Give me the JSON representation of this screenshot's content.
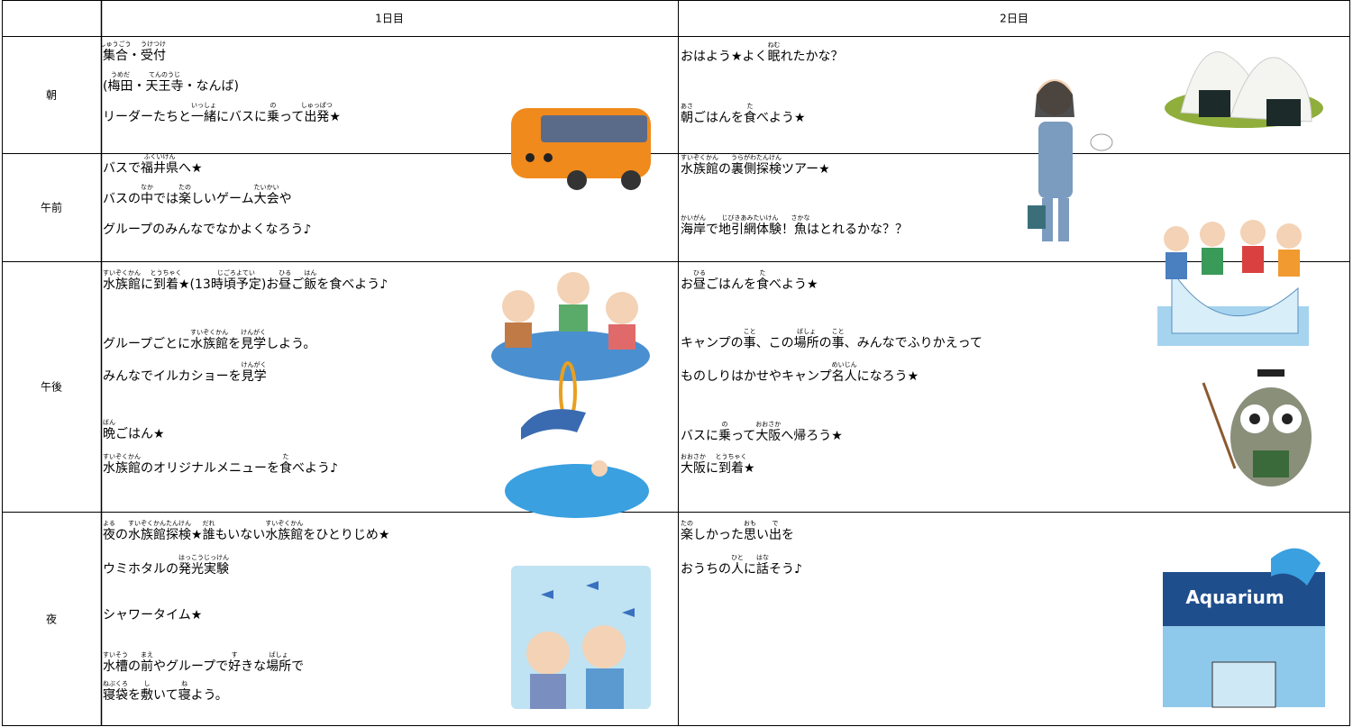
{
  "header": {
    "day1": "1日目",
    "day2": "2日目"
  },
  "rows": [
    {
      "label": "朝",
      "day1": [
        [
          [
            "集合",
            "しゅうごう"
          ],
          "・",
          [
            "受付",
            "うけつけ"
          ]
        ],
        [
          "(",
          [
            "梅田",
            "うめだ"
          ],
          "・",
          [
            "天王寺",
            "てんのうじ"
          ],
          "・なんば)"
        ],
        [
          "リーダーたちと",
          [
            "一緒",
            "いっしょ"
          ],
          "にバスに",
          [
            "乗",
            "の"
          ],
          "って",
          [
            "出発",
            "しゅっぱつ"
          ],
          "★"
        ]
      ],
      "day2": [
        [
          "おはよう★よく",
          [
            "眠",
            "ねむ"
          ],
          "れたかな？"
        ],
        [
          [
            "朝",
            "あさ"
          ],
          "ごはんを",
          [
            "食",
            "た"
          ],
          "べよう★"
        ]
      ]
    },
    {
      "label": "午前",
      "day1": [
        [
          "バスで",
          [
            "福井県",
            "ふくいけん"
          ],
          "へ★"
        ],
        [
          "バスの",
          [
            "中",
            "なか"
          ],
          "では",
          [
            "楽",
            "たの"
          ],
          "しいゲーム",
          [
            "大会",
            "たいかい"
          ],
          "や"
        ],
        [
          "グループのみんなでなかよくなろう♪"
        ]
      ],
      "day2": [
        [
          [
            "水族館",
            "すいぞくかん"
          ],
          "の",
          [
            "裏側探検",
            "うらがわたんけん"
          ],
          "ツアー★"
        ],
        [
          [
            "海岸",
            "かいがん"
          ],
          "で",
          [
            "地引網体験",
            "じびきあみたいけん"
          ],
          "！",
          [
            "魚",
            "さかな"
          ],
          "はとれるかな？？"
        ]
      ]
    },
    {
      "label": "午後",
      "day1": [
        [
          [
            "水族館",
            "すいぞくかん"
          ],
          "に",
          [
            "到着",
            "とうちゃく"
          ],
          "★(13",
          [
            "時頃予定",
            "じごろよてい"
          ],
          ")お",
          [
            "昼",
            "ひる"
          ],
          "ご",
          [
            "飯",
            "はん"
          ],
          "を食べよう♪"
        ],
        [
          "グループごとに",
          [
            "水族館",
            "すいぞくかん"
          ],
          "を",
          [
            "見学",
            "けんがく"
          ],
          "しよう。"
        ],
        [
          "みんなでイルカショーを",
          [
            "見学",
            "けんがく"
          ]
        ],
        [
          [
            "晩",
            "ばん"
          ],
          "ごはん★"
        ],
        [
          [
            "水族館",
            "すいぞくかん"
          ],
          "のオリジナルメニューを",
          [
            "食",
            "た"
          ],
          "べよう♪"
        ]
      ],
      "day2": [
        [
          "お",
          [
            "昼",
            "ひる"
          ],
          "ごはんを",
          [
            "食",
            "た"
          ],
          "べよう★"
        ],
        [
          "キャンプの",
          [
            "事",
            "こと"
          ],
          "、この",
          [
            "場所",
            "ばしょ"
          ],
          "の",
          [
            "事",
            "こと"
          ],
          "、みんなでふりかえって"
        ],
        [
          "ものしりはかせやキャンプ",
          [
            "名人",
            "めいじん"
          ],
          "になろう★"
        ],
        [
          "バスに",
          [
            "乗",
            "の"
          ],
          "って",
          [
            "大阪",
            "おおさか"
          ],
          "へ帰ろう★"
        ],
        [
          [
            "大阪",
            "おおさか"
          ],
          "に",
          [
            "到着",
            "とうちゃく"
          ],
          "★"
        ]
      ]
    },
    {
      "label": "夜",
      "day1": [
        [
          [
            "夜",
            "よる"
          ],
          "の",
          [
            "水族館探検",
            "すいぞくかんたんけん"
          ],
          "★",
          [
            "誰",
            "だれ"
          ],
          "もいない",
          [
            "水族館",
            "すいぞくかん"
          ],
          "をひとりじめ★"
        ],
        [
          "ウミホタルの",
          [
            "発光実験",
            "はっこうじっけん"
          ]
        ],
        [
          "シャワータイム★"
        ],
        [
          [
            "水槽",
            "すいそう"
          ],
          "の",
          [
            "前",
            "まえ"
          ],
          "やグループで",
          [
            "好",
            "す"
          ],
          "きな",
          [
            "場所",
            "ばしょ"
          ],
          "で"
        ],
        [
          [
            "寝袋",
            "ねぶくろ"
          ],
          "を",
          [
            "敷",
            "し"
          ],
          "いて",
          [
            "寝",
            "ね"
          ],
          "よう。"
        ]
      ],
      "day2": [
        [
          [
            "楽",
            "たの"
          ],
          "しかった",
          [
            "思",
            "おも"
          ],
          "い",
          [
            "出",
            "で"
          ],
          "を"
        ],
        [
          "おうちの",
          [
            "人",
            "ひと"
          ],
          "に",
          [
            "話",
            "はな"
          ],
          "そう♪"
        ]
      ]
    }
  ],
  "illustrations": {
    "aquarium_sign": "Aquarium"
  }
}
